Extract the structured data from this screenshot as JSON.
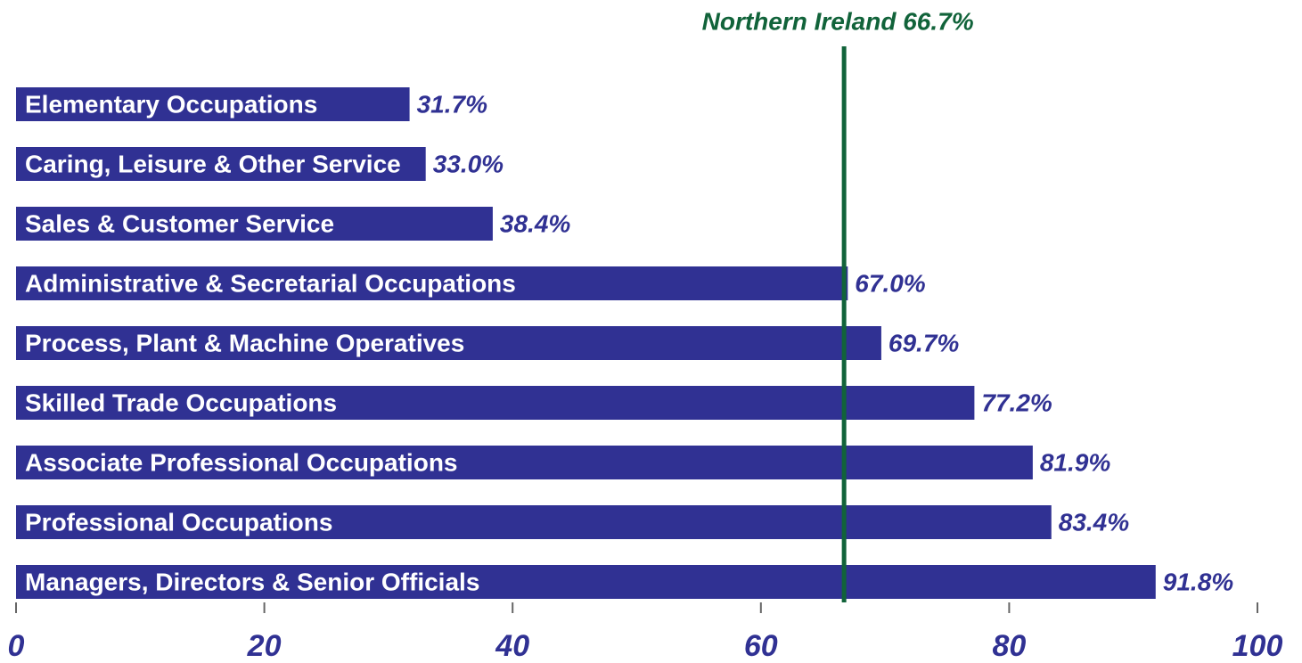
{
  "chart_data": {
    "type": "bar",
    "orientation": "horizontal",
    "categories": [
      "Elementary Occupations",
      "Caring, Leisure & Other Service",
      "Sales & Customer Service",
      "Administrative & Secretarial Occupations",
      "Process, Plant & Machine Operatives",
      "Skilled Trade Occupations",
      "Associate Professional Occupations",
      "Professional Occupations",
      "Managers, Directors & Senior Officials"
    ],
    "values": [
      31.7,
      33.0,
      38.4,
      67.0,
      69.7,
      77.2,
      81.9,
      83.4,
      91.8
    ],
    "value_labels": [
      "31.7%",
      "33.0%",
      "38.4%",
      "67.0%",
      "69.7%",
      "77.2%",
      "81.9%",
      "83.4%",
      "91.8%"
    ],
    "color": "#303193",
    "xlim": [
      0,
      100
    ],
    "xticks": [
      0,
      20,
      40,
      60,
      80,
      100
    ],
    "reference_line": {
      "value": 66.7,
      "label": "Northern Ireland 66.7%",
      "color": "#11633a"
    }
  }
}
